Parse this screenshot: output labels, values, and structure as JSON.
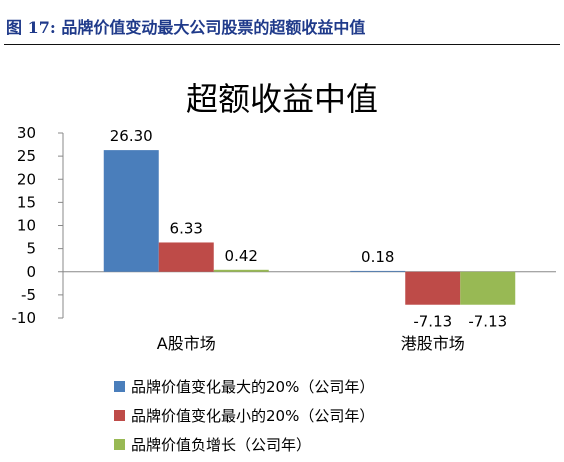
{
  "figure_caption": "图 17:  品牌价值变动最大公司股票的超额收益中值",
  "chart_data": {
    "type": "bar",
    "title": "超额收益中值",
    "categories": [
      "A股市场",
      "港股市场"
    ],
    "series": [
      {
        "name": "品牌价值变化最大的20%（公司年）",
        "values": [
          26.3,
          0.18
        ],
        "labels": [
          "26.30",
          "0.18"
        ],
        "color": "#4a7ebb"
      },
      {
        "name": "品牌价值变化最小的20%（公司年）",
        "values": [
          6.33,
          -7.13
        ],
        "labels": [
          "6.33",
          "-7.13"
        ],
        "color": "#be4b48"
      },
      {
        "name": "品牌价值负增长（公司年）",
        "values": [
          0.42,
          -7.13
        ],
        "labels": [
          "0.42",
          "-7.13"
        ],
        "color": "#98b954"
      }
    ],
    "yticks": [
      30,
      25,
      20,
      15,
      10,
      5,
      0,
      -5,
      -10
    ],
    "ylim": [
      -10,
      30
    ],
    "grid": false,
    "legend_position": "bottom"
  }
}
